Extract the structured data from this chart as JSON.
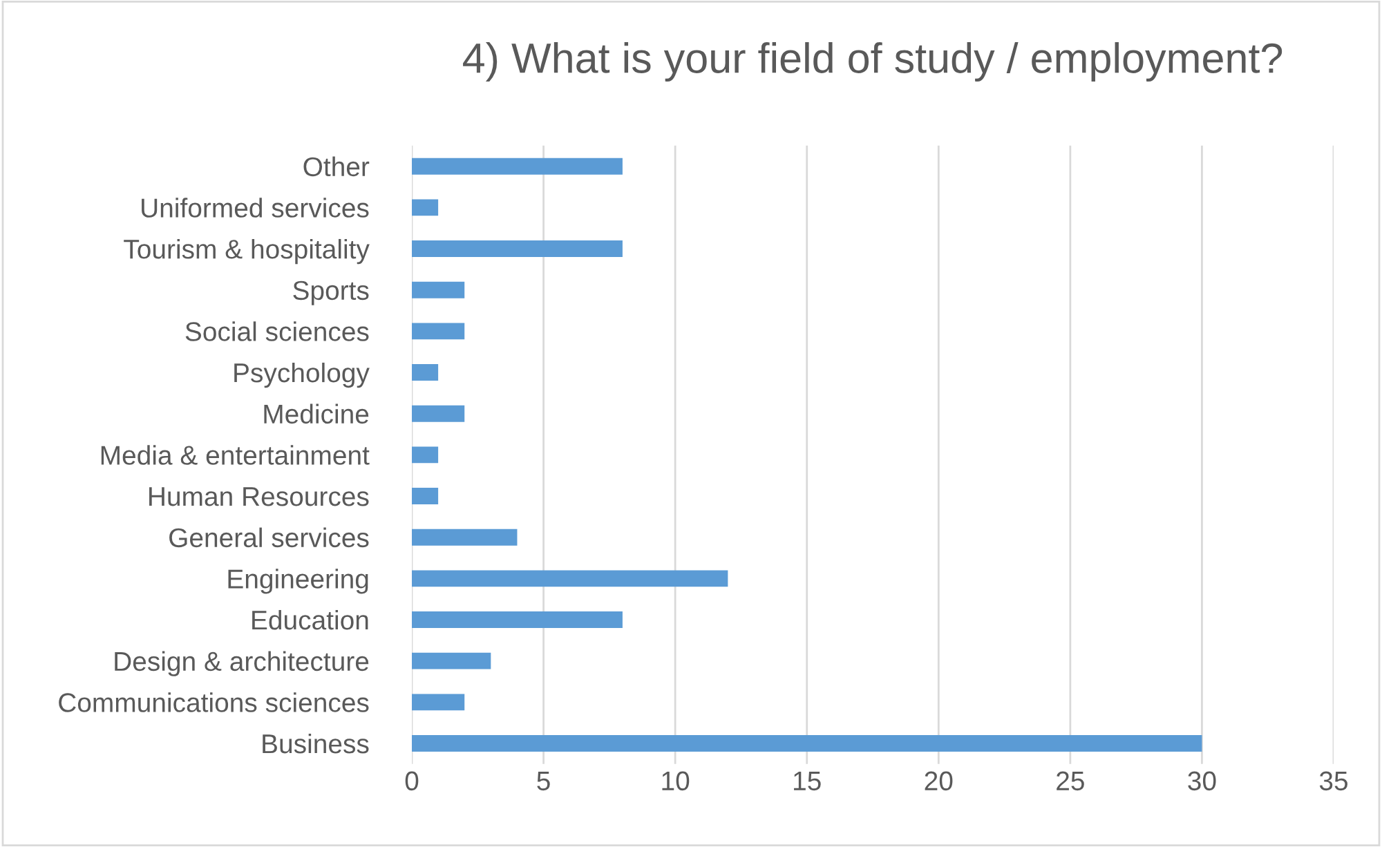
{
  "chart_data": {
    "type": "bar",
    "orientation": "horizontal",
    "title": "4) What is your field of study / employment?",
    "categories": [
      "Other",
      "Uniformed services",
      "Tourism & hospitality",
      "Sports",
      "Social sciences",
      "Psychology",
      "Medicine",
      "Media & entertainment",
      "Human Resources",
      "General services",
      "Engineering",
      "Education",
      "Design & architecture",
      "Communications sciences",
      "Business"
    ],
    "values": [
      8,
      1,
      8,
      2,
      2,
      1,
      2,
      1,
      1,
      4,
      12,
      8,
      3,
      2,
      30
    ],
    "color": "#5b9bd5",
    "xlim": [
      0,
      35
    ],
    "xticks": [
      0,
      5,
      10,
      15,
      20,
      25,
      30,
      35
    ],
    "grid": "x",
    "legend": false
  }
}
